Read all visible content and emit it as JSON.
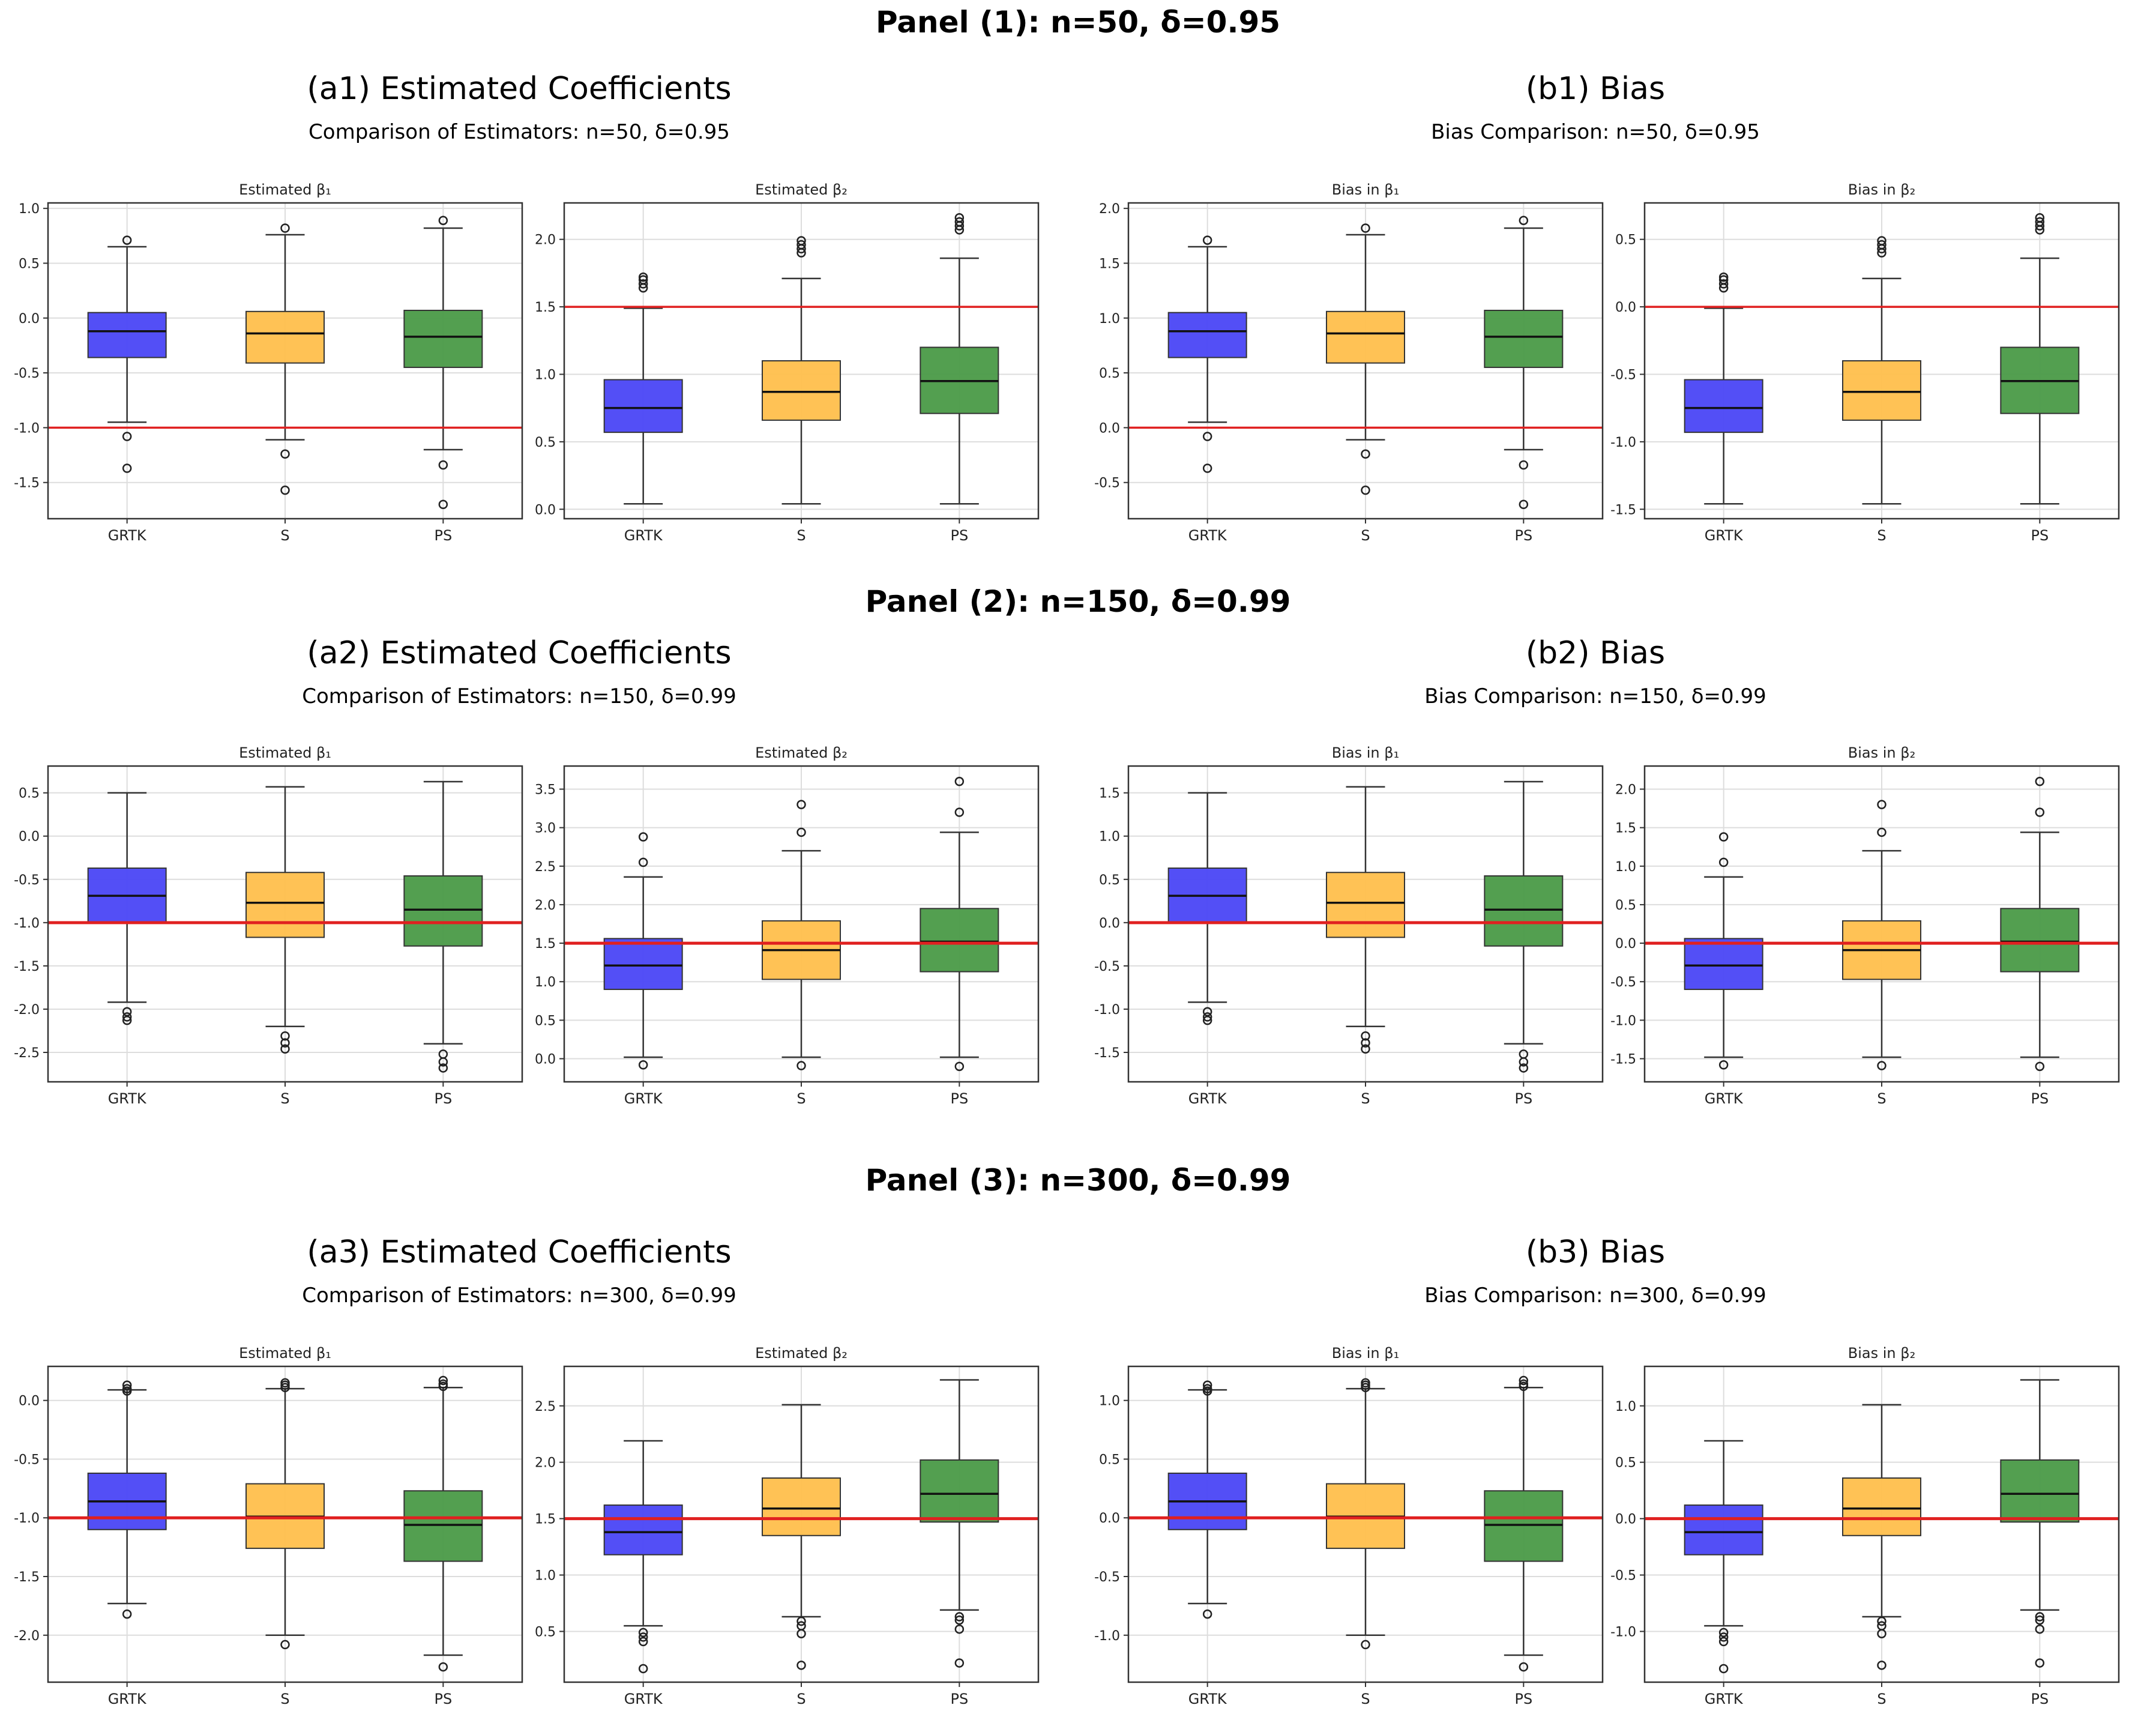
{
  "figure": {
    "colors": {
      "GRTK": "#4a46f5",
      "S": "#ffbf4c",
      "PS": "#4a9a47",
      "reference": "#e02020",
      "median": "#111111",
      "frame": "#333333",
      "grid": "#dddddd"
    },
    "panels": [
      {
        "title": "Panel (1): n=50, δ=0.95",
        "a_title": "(a1) Estimated Coefficients",
        "a_subtitle": "Comparison of Estimators: n=50, δ=0.95",
        "b_title": "(b1) Bias",
        "b_subtitle": "Bias Comparison: n=50, δ=0.95"
      },
      {
        "title": "Panel (2): n=150, δ=0.99",
        "a_title": "(a2) Estimated Coefficients",
        "a_subtitle": "Comparison of Estimators: n=150, δ=0.99",
        "b_title": "(b2) Bias",
        "b_subtitle": "Bias Comparison: n=150, δ=0.99"
      },
      {
        "title": "Panel (3): n=300, δ=0.99",
        "a_title": "(a3) Estimated Coefficients",
        "a_subtitle": "Comparison of Estimators: n=300, δ=0.99",
        "b_title": "(b3) Bias",
        "b_subtitle": "Bias Comparison: n=300, δ=0.99"
      }
    ]
  },
  "chart_data": [
    {
      "type": "box",
      "panel": 1,
      "title": "Estimated β₁",
      "categories": [
        "GRTK",
        "S",
        "PS"
      ],
      "ylim": [
        -1.83,
        1.05
      ],
      "yticks": [
        -1.5,
        -1.0,
        -0.5,
        0.0,
        0.5,
        1.0
      ],
      "reference_line": -1.0,
      "series": [
        {
          "name": "GRTK",
          "whisker_low": -0.95,
          "q1": -0.36,
          "median": -0.12,
          "q3": 0.05,
          "whisker_high": 0.65,
          "outliers": [
            0.71,
            -1.08,
            -1.37
          ]
        },
        {
          "name": "S",
          "whisker_low": -1.11,
          "q1": -0.41,
          "median": -0.14,
          "q3": 0.06,
          "whisker_high": 0.76,
          "outliers": [
            0.82,
            -1.24,
            -1.57
          ]
        },
        {
          "name": "PS",
          "whisker_low": -1.2,
          "q1": -0.45,
          "median": -0.17,
          "q3": 0.07,
          "whisker_high": 0.82,
          "outliers": [
            0.89,
            -1.34,
            -1.7
          ]
        }
      ]
    },
    {
      "type": "box",
      "panel": 1,
      "title": "Estimated β₂",
      "categories": [
        "GRTK",
        "S",
        "PS"
      ],
      "ylim": [
        -0.07,
        2.27
      ],
      "yticks": [
        0.0,
        0.5,
        1.0,
        1.5,
        2.0
      ],
      "reference_line": 1.5,
      "series": [
        {
          "name": "GRTK",
          "whisker_low": 0.04,
          "q1": 0.57,
          "median": 0.75,
          "q3": 0.96,
          "whisker_high": 1.49,
          "outliers": [
            1.64,
            1.67,
            1.7,
            1.72
          ]
        },
        {
          "name": "S",
          "whisker_low": 0.04,
          "q1": 0.66,
          "median": 0.87,
          "q3": 1.1,
          "whisker_high": 1.71,
          "outliers": [
            1.9,
            1.93,
            1.96,
            1.99
          ]
        },
        {
          "name": "PS",
          "whisker_low": 0.04,
          "q1": 0.71,
          "median": 0.95,
          "q3": 1.2,
          "whisker_high": 1.86,
          "outliers": [
            2.07,
            2.1,
            2.13,
            2.16
          ]
        }
      ]
    },
    {
      "type": "box",
      "panel": 1,
      "title": "Bias in β₁",
      "categories": [
        "GRTK",
        "S",
        "PS"
      ],
      "ylim": [
        -0.83,
        2.05
      ],
      "yticks": [
        -0.5,
        0.0,
        0.5,
        1.0,
        1.5,
        2.0
      ],
      "reference_line": 0.0,
      "series": [
        {
          "name": "GRTK",
          "whisker_low": 0.05,
          "q1": 0.64,
          "median": 0.88,
          "q3": 1.05,
          "whisker_high": 1.65,
          "outliers": [
            1.71,
            -0.08,
            -0.37
          ]
        },
        {
          "name": "S",
          "whisker_low": -0.11,
          "q1": 0.59,
          "median": 0.86,
          "q3": 1.06,
          "whisker_high": 1.76,
          "outliers": [
            1.82,
            -0.24,
            -0.57
          ]
        },
        {
          "name": "PS",
          "whisker_low": -0.2,
          "q1": 0.55,
          "median": 0.83,
          "q3": 1.07,
          "whisker_high": 1.82,
          "outliers": [
            1.89,
            -0.34,
            -0.7
          ]
        }
      ]
    },
    {
      "type": "box",
      "panel": 1,
      "title": "Bias in β₂",
      "categories": [
        "GRTK",
        "S",
        "PS"
      ],
      "ylim": [
        -1.57,
        0.77
      ],
      "yticks": [
        -1.5,
        -1.0,
        -0.5,
        0.0,
        0.5
      ],
      "reference_line": 0.0,
      "series": [
        {
          "name": "GRTK",
          "whisker_low": -1.46,
          "q1": -0.93,
          "median": -0.75,
          "q3": -0.54,
          "whisker_high": -0.01,
          "outliers": [
            0.14,
            0.17,
            0.2,
            0.22
          ]
        },
        {
          "name": "S",
          "whisker_low": -1.46,
          "q1": -0.84,
          "median": -0.63,
          "q3": -0.4,
          "whisker_high": 0.21,
          "outliers": [
            0.4,
            0.43,
            0.46,
            0.49
          ]
        },
        {
          "name": "PS",
          "whisker_low": -1.46,
          "q1": -0.79,
          "median": -0.55,
          "q3": -0.3,
          "whisker_high": 0.36,
          "outliers": [
            0.57,
            0.6,
            0.63,
            0.66
          ]
        }
      ]
    },
    {
      "type": "box",
      "panel": 2,
      "title": "Estimated β₁",
      "categories": [
        "GRTK",
        "S",
        "PS"
      ],
      "ylim": [
        -2.84,
        0.81
      ],
      "yticks": [
        -2.5,
        -2.0,
        -1.5,
        -1.0,
        -0.5,
        0.0,
        0.5
      ],
      "reference_line": -1.0,
      "series": [
        {
          "name": "GRTK",
          "whisker_low": -1.92,
          "q1": -1.0,
          "median": -0.69,
          "q3": -0.37,
          "whisker_high": 0.5,
          "outliers": [
            -2.03,
            -2.09,
            -2.13
          ]
        },
        {
          "name": "S",
          "whisker_low": -2.2,
          "q1": -1.17,
          "median": -0.77,
          "q3": -0.42,
          "whisker_high": 0.57,
          "outliers": [
            -2.31,
            -2.39,
            -2.46
          ]
        },
        {
          "name": "PS",
          "whisker_low": -2.4,
          "q1": -1.27,
          "median": -0.85,
          "q3": -0.46,
          "whisker_high": 0.63,
          "outliers": [
            -2.52,
            -2.61,
            -2.68
          ]
        }
      ]
    },
    {
      "type": "box",
      "panel": 2,
      "title": "Estimated β₂",
      "categories": [
        "GRTK",
        "S",
        "PS"
      ],
      "ylim": [
        -0.3,
        3.8
      ],
      "yticks": [
        0.0,
        0.5,
        1.0,
        1.5,
        2.0,
        2.5,
        3.0,
        3.5
      ],
      "reference_line": 1.5,
      "series": [
        {
          "name": "GRTK",
          "whisker_low": 0.02,
          "q1": 0.9,
          "median": 1.21,
          "q3": 1.56,
          "whisker_high": 2.36,
          "outliers": [
            2.55,
            2.88,
            -0.08
          ]
        },
        {
          "name": "S",
          "whisker_low": 0.02,
          "q1": 1.03,
          "median": 1.41,
          "q3": 1.79,
          "whisker_high": 2.7,
          "outliers": [
            2.94,
            3.3,
            -0.09
          ]
        },
        {
          "name": "PS",
          "whisker_low": 0.02,
          "q1": 1.13,
          "median": 1.52,
          "q3": 1.95,
          "whisker_high": 2.94,
          "outliers": [
            3.2,
            3.6,
            -0.1
          ]
        }
      ]
    },
    {
      "type": "box",
      "panel": 2,
      "title": "Bias in β₁",
      "categories": [
        "GRTK",
        "S",
        "PS"
      ],
      "ylim": [
        -1.84,
        1.81
      ],
      "yticks": [
        -1.5,
        -1.0,
        -0.5,
        0.0,
        0.5,
        1.0,
        1.5
      ],
      "reference_line": 0.0,
      "series": [
        {
          "name": "GRTK",
          "whisker_low": -0.92,
          "q1": 0.0,
          "median": 0.31,
          "q3": 0.63,
          "whisker_high": 1.5,
          "outliers": [
            -1.03,
            -1.09,
            -1.13
          ]
        },
        {
          "name": "S",
          "whisker_low": -1.2,
          "q1": -0.17,
          "median": 0.23,
          "q3": 0.58,
          "whisker_high": 1.57,
          "outliers": [
            -1.31,
            -1.39,
            -1.46
          ]
        },
        {
          "name": "PS",
          "whisker_low": -1.4,
          "q1": -0.27,
          "median": 0.15,
          "q3": 0.54,
          "whisker_high": 1.63,
          "outliers": [
            -1.52,
            -1.61,
            -1.68
          ]
        }
      ]
    },
    {
      "type": "box",
      "panel": 2,
      "title": "Bias in β₂",
      "categories": [
        "GRTK",
        "S",
        "PS"
      ],
      "ylim": [
        -1.8,
        2.3
      ],
      "yticks": [
        -1.5,
        -1.0,
        -0.5,
        0.0,
        0.5,
        1.0,
        1.5,
        2.0
      ],
      "reference_line": 0.0,
      "series": [
        {
          "name": "GRTK",
          "whisker_low": -1.48,
          "q1": -0.6,
          "median": -0.29,
          "q3": 0.06,
          "whisker_high": 0.86,
          "outliers": [
            1.05,
            1.38,
            -1.58
          ]
        },
        {
          "name": "S",
          "whisker_low": -1.48,
          "q1": -0.47,
          "median": -0.09,
          "q3": 0.29,
          "whisker_high": 1.2,
          "outliers": [
            1.44,
            1.8,
            -1.59
          ]
        },
        {
          "name": "PS",
          "whisker_low": -1.48,
          "q1": -0.37,
          "median": 0.02,
          "q3": 0.45,
          "whisker_high": 1.44,
          "outliers": [
            1.7,
            2.1,
            -1.6
          ]
        }
      ]
    },
    {
      "type": "box",
      "panel": 3,
      "title": "Estimated β₁",
      "categories": [
        "GRTK",
        "S",
        "PS"
      ],
      "ylim": [
        -2.4,
        0.29
      ],
      "yticks": [
        -2.0,
        -1.5,
        -1.0,
        -0.5,
        0.0
      ],
      "reference_line": -1.0,
      "series": [
        {
          "name": "GRTK",
          "whisker_low": -1.73,
          "q1": -1.1,
          "median": -0.86,
          "q3": -0.62,
          "whisker_high": 0.09,
          "outliers": [
            0.08,
            0.1,
            0.13,
            -1.82
          ]
        },
        {
          "name": "S",
          "whisker_low": -2.0,
          "q1": -1.26,
          "median": -0.99,
          "q3": -0.71,
          "whisker_high": 0.1,
          "outliers": [
            0.11,
            0.13,
            0.15,
            -2.08
          ]
        },
        {
          "name": "PS",
          "whisker_low": -2.17,
          "q1": -1.37,
          "median": -1.06,
          "q3": -0.77,
          "whisker_high": 0.11,
          "outliers": [
            0.12,
            0.14,
            0.17,
            -2.27
          ]
        }
      ]
    },
    {
      "type": "box",
      "panel": 3,
      "title": "Estimated β₂",
      "categories": [
        "GRTK",
        "S",
        "PS"
      ],
      "ylim": [
        0.05,
        2.85
      ],
      "yticks": [
        0.5,
        1.0,
        1.5,
        2.0,
        2.5
      ],
      "reference_line": 1.5,
      "series": [
        {
          "name": "GRTK",
          "whisker_low": 0.55,
          "q1": 1.18,
          "median": 1.38,
          "q3": 1.62,
          "whisker_high": 2.19,
          "outliers": [
            0.49,
            0.45,
            0.41,
            0.17
          ]
        },
        {
          "name": "S",
          "whisker_low": 0.63,
          "q1": 1.35,
          "median": 1.59,
          "q3": 1.86,
          "whisker_high": 2.51,
          "outliers": [
            0.59,
            0.55,
            0.48,
            0.2
          ]
        },
        {
          "name": "PS",
          "whisker_low": 0.69,
          "q1": 1.47,
          "median": 1.72,
          "q3": 2.02,
          "whisker_high": 2.73,
          "outliers": [
            0.63,
            0.6,
            0.52,
            0.22
          ]
        }
      ]
    },
    {
      "type": "box",
      "panel": 3,
      "title": "Bias in β₁",
      "categories": [
        "GRTK",
        "S",
        "PS"
      ],
      "ylim": [
        -1.4,
        1.29
      ],
      "yticks": [
        -1.0,
        -0.5,
        0.0,
        0.5,
        1.0
      ],
      "reference_line": 0.0,
      "series": [
        {
          "name": "GRTK",
          "whisker_low": -0.73,
          "q1": -0.1,
          "median": 0.14,
          "q3": 0.38,
          "whisker_high": 1.09,
          "outliers": [
            1.08,
            1.1,
            1.13,
            -0.82
          ]
        },
        {
          "name": "S",
          "whisker_low": -1.0,
          "q1": -0.26,
          "median": 0.01,
          "q3": 0.29,
          "whisker_high": 1.1,
          "outliers": [
            1.11,
            1.13,
            1.15,
            -1.08
          ]
        },
        {
          "name": "PS",
          "whisker_low": -1.17,
          "q1": -0.37,
          "median": -0.06,
          "q3": 0.23,
          "whisker_high": 1.11,
          "outliers": [
            1.12,
            1.14,
            1.17,
            -1.27
          ]
        }
      ]
    },
    {
      "type": "box",
      "panel": 3,
      "title": "Bias in β₂",
      "categories": [
        "GRTK",
        "S",
        "PS"
      ],
      "ylim": [
        -1.45,
        1.35
      ],
      "yticks": [
        -1.0,
        -0.5,
        0.0,
        0.5,
        1.0
      ],
      "reference_line": 0.0,
      "series": [
        {
          "name": "GRTK",
          "whisker_low": -0.95,
          "q1": -0.32,
          "median": -0.12,
          "q3": 0.12,
          "whisker_high": 0.69,
          "outliers": [
            -1.01,
            -1.05,
            -1.09,
            -1.33
          ]
        },
        {
          "name": "S",
          "whisker_low": -0.87,
          "q1": -0.15,
          "median": 0.09,
          "q3": 0.36,
          "whisker_high": 1.01,
          "outliers": [
            -0.91,
            -0.95,
            -1.02,
            -1.3
          ]
        },
        {
          "name": "PS",
          "whisker_low": -0.81,
          "q1": -0.03,
          "median": 0.22,
          "q3": 0.52,
          "whisker_high": 1.23,
          "outliers": [
            -0.87,
            -0.9,
            -0.98,
            -1.28
          ]
        }
      ]
    }
  ]
}
